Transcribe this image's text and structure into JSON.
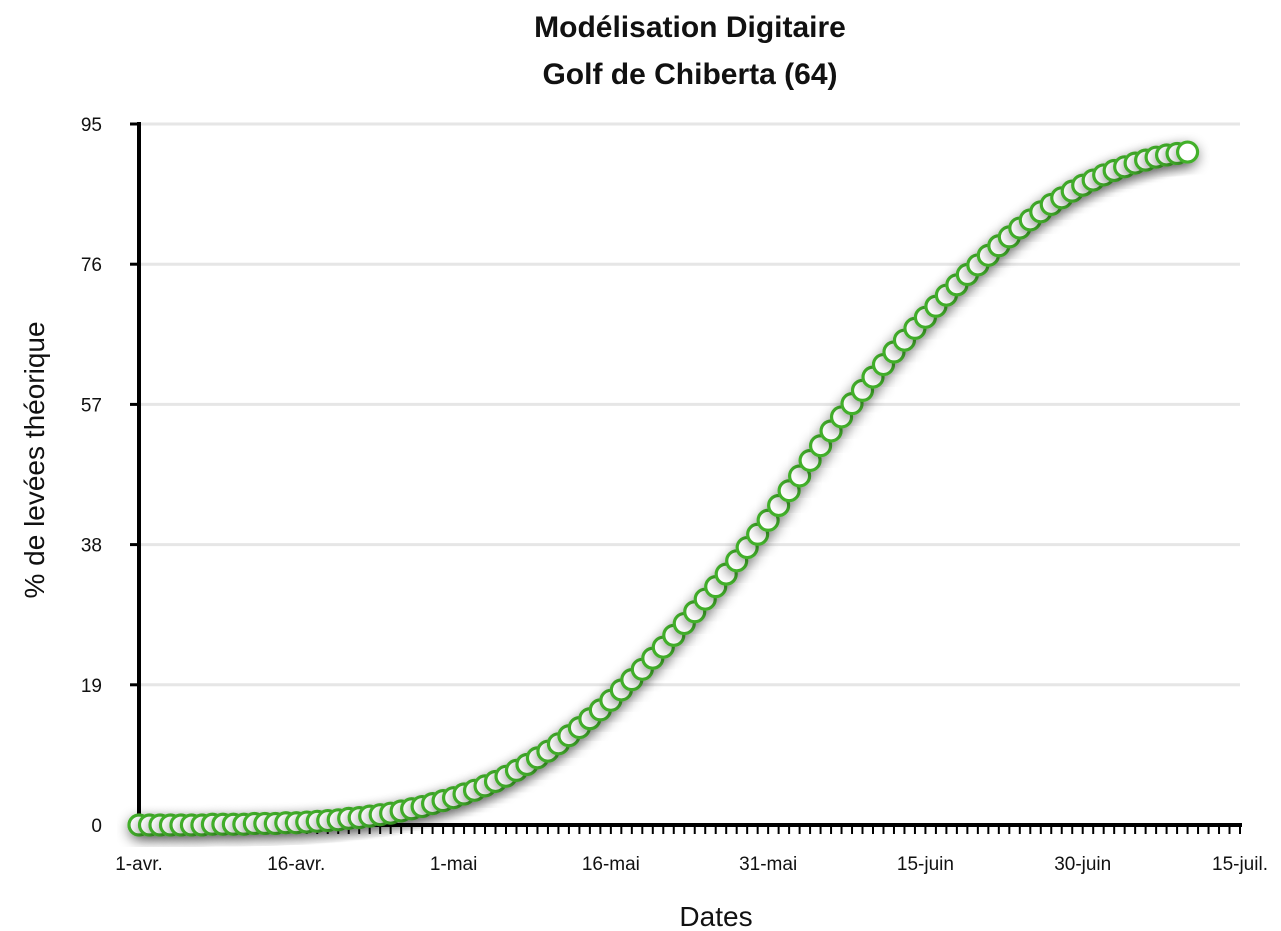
{
  "chart_data": {
    "type": "scatter",
    "title": [
      "Modélisation Digitaire",
      "Golf de Chiberta (64)"
    ],
    "xlabel": "Dates",
    "ylabel": "% de levées théorique",
    "yticks": [
      "0",
      "19",
      "38",
      "57",
      "76",
      "95"
    ],
    "xticks": [
      "1-avr.",
      "16-avr.",
      "1-mai",
      "16-mai",
      "31-mai",
      "15-juin",
      "30-juin",
      "15-juil."
    ],
    "xlim": [
      "2024-04-01",
      "2024-07-15"
    ],
    "ylim": [
      0,
      95
    ],
    "grid": true,
    "legend": "none",
    "colors": {
      "marker_stroke": "#43b02a",
      "marker_fill": "#ffffff",
      "gridline": "#e6e6e6",
      "axis": "#000000"
    },
    "series": [
      {
        "x": [
          "2024-04-01",
          "2024-04-02",
          "2024-04-03",
          "2024-04-04",
          "2024-04-05",
          "2024-04-06",
          "2024-04-07",
          "2024-04-08",
          "2024-04-09",
          "2024-04-10",
          "2024-04-11",
          "2024-04-12",
          "2024-04-13",
          "2024-04-14",
          "2024-04-15",
          "2024-04-16",
          "2024-04-17",
          "2024-04-18",
          "2024-04-19",
          "2024-04-20",
          "2024-04-21",
          "2024-04-22",
          "2024-04-23",
          "2024-04-24",
          "2024-04-25",
          "2024-04-26",
          "2024-04-27",
          "2024-04-28",
          "2024-04-29",
          "2024-04-30",
          "2024-05-01",
          "2024-05-02",
          "2024-05-03",
          "2024-05-04",
          "2024-05-05",
          "2024-05-06",
          "2024-05-07",
          "2024-05-08",
          "2024-05-09",
          "2024-05-10",
          "2024-05-11",
          "2024-05-12",
          "2024-05-13",
          "2024-05-14",
          "2024-05-15",
          "2024-05-16",
          "2024-05-17",
          "2024-05-18",
          "2024-05-19",
          "2024-05-20",
          "2024-05-21",
          "2024-05-22",
          "2024-05-23",
          "2024-05-24",
          "2024-05-25",
          "2024-05-26",
          "2024-05-27",
          "2024-05-28",
          "2024-05-29",
          "2024-05-30",
          "2024-05-31",
          "2024-06-01",
          "2024-06-02",
          "2024-06-03",
          "2024-06-04",
          "2024-06-05",
          "2024-06-06",
          "2024-06-07",
          "2024-06-08",
          "2024-06-09",
          "2024-06-10",
          "2024-06-11",
          "2024-06-12",
          "2024-06-13",
          "2024-06-14",
          "2024-06-15",
          "2024-06-16",
          "2024-06-17",
          "2024-06-18",
          "2024-06-19",
          "2024-06-20",
          "2024-06-21",
          "2024-06-22",
          "2024-06-23",
          "2024-06-24",
          "2024-06-25",
          "2024-06-26",
          "2024-06-27",
          "2024-06-28",
          "2024-06-29",
          "2024-06-30",
          "2024-07-01",
          "2024-07-02",
          "2024-07-03",
          "2024-07-04",
          "2024-07-05",
          "2024-07-06",
          "2024-07-07",
          "2024-07-08",
          "2024-07-09",
          "2024-07-10"
        ],
        "y": [
          0,
          0,
          0,
          0,
          0,
          0,
          0,
          0.1,
          0.1,
          0.1,
          0.1,
          0.2,
          0.2,
          0.2,
          0.3,
          0.3,
          0.4,
          0.5,
          0.6,
          0.7,
          0.9,
          1.0,
          1.2,
          1.4,
          1.6,
          1.9,
          2.2,
          2.5,
          2.9,
          3.3,
          3.7,
          4.2,
          4.7,
          5.3,
          5.9,
          6.6,
          7.4,
          8.2,
          9.1,
          10.0,
          11.0,
          12.1,
          13.2,
          14.4,
          15.6,
          16.9,
          18.3,
          19.7,
          21.1,
          22.6,
          24.1,
          25.7,
          27.3,
          28.9,
          30.6,
          32.3,
          34.0,
          35.8,
          37.6,
          39.4,
          41.3,
          43.3,
          45.3,
          47.3,
          49.4,
          51.4,
          53.4,
          55.3,
          57.1,
          58.9,
          60.7,
          62.4,
          64.1,
          65.7,
          67.3,
          68.8,
          70.3,
          71.8,
          73.2,
          74.6,
          75.9,
          77.2,
          78.5,
          79.7,
          80.9,
          82.0,
          83.1,
          84.1,
          85.0,
          85.9,
          86.7,
          87.4,
          88.1,
          88.7,
          89.2,
          89.7,
          90.1,
          90.5,
          90.8,
          91.0,
          91.2
        ]
      }
    ]
  }
}
